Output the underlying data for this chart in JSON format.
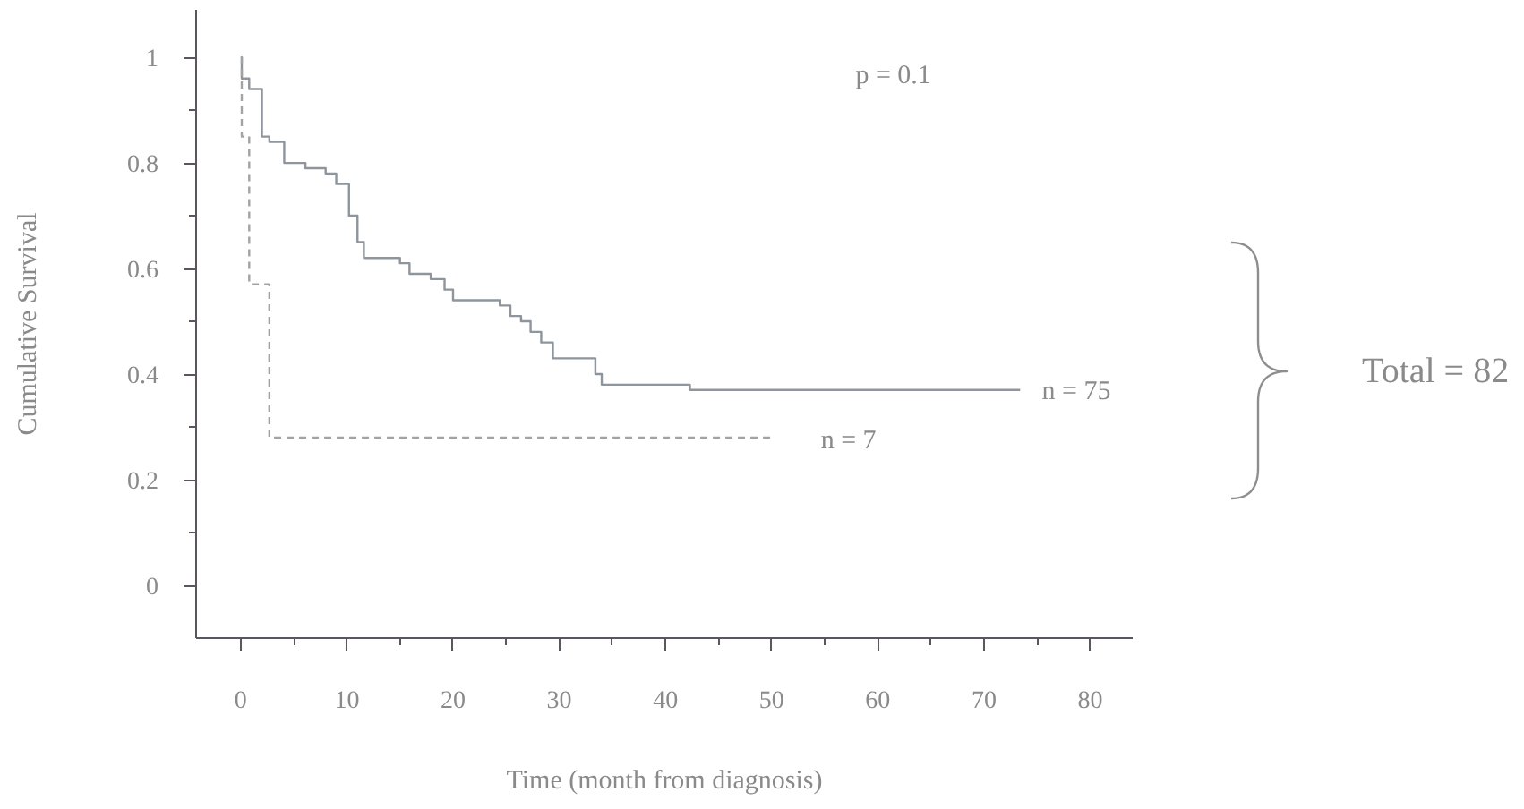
{
  "chart_data": {
    "type": "step",
    "xlabel": "Time (month from diagnosis)",
    "ylabel": "Cumulative Survival",
    "xlim": [
      -4.2,
      84
    ],
    "ylim": [
      -0.1,
      1.09
    ],
    "xticks": [
      0,
      {
        "value": 5,
        "label": null
      },
      10,
      {
        "value": 15,
        "label": null
      },
      20,
      {
        "value": 25,
        "label": null
      },
      30,
      {
        "value": 35,
        "label": null
      },
      40,
      {
        "value": 45,
        "label": null
      },
      50,
      {
        "value": 55,
        "label": null
      },
      60,
      {
        "value": 65,
        "label": null
      },
      70,
      {
        "value": 75,
        "label": null
      },
      80
    ],
    "yticks": [
      0,
      {
        "value": 0.1,
        "label": null
      },
      0.2,
      {
        "value": 0.3,
        "label": null
      },
      0.4,
      {
        "value": 0.5,
        "label": null
      },
      0.6,
      {
        "value": 0.7,
        "label": null
      },
      0.8,
      {
        "value": 0.9,
        "label": null
      },
      1
    ],
    "series": [
      {
        "color": "#8e959c",
        "line_style": "solid",
        "x": [
          0,
          0.1,
          0.8,
          2.0,
          2.7,
          4.1,
          6.1,
          8.0,
          9.0,
          10.2,
          11.0,
          11.6,
          15.0,
          15.9,
          17.9,
          19.2,
          20.0,
          24.4,
          25.4,
          26.4,
          27.3,
          28.3,
          29.4,
          33.4,
          34.0,
          42.3,
          73.4
        ],
        "values": [
          1.0,
          0.96,
          0.94,
          0.85,
          0.84,
          0.8,
          0.79,
          0.78,
          0.76,
          0.7,
          0.65,
          0.62,
          0.61,
          0.59,
          0.58,
          0.56,
          0.54,
          0.53,
          0.51,
          0.5,
          0.48,
          0.46,
          0.43,
          0.4,
          0.38,
          0.37,
          0.37
        ]
      },
      {
        "color": "#a3a3a3",
        "line_style": "dashed",
        "x": [
          0,
          0.1,
          0.8,
          2.7,
          50.0
        ],
        "values": [
          1.0,
          0.85,
          0.57,
          0.28,
          0.28
        ]
      }
    ],
    "annotations": [
      "p = 0.1",
      "n = 75",
      "n = 7",
      "Total = 82"
    ]
  }
}
